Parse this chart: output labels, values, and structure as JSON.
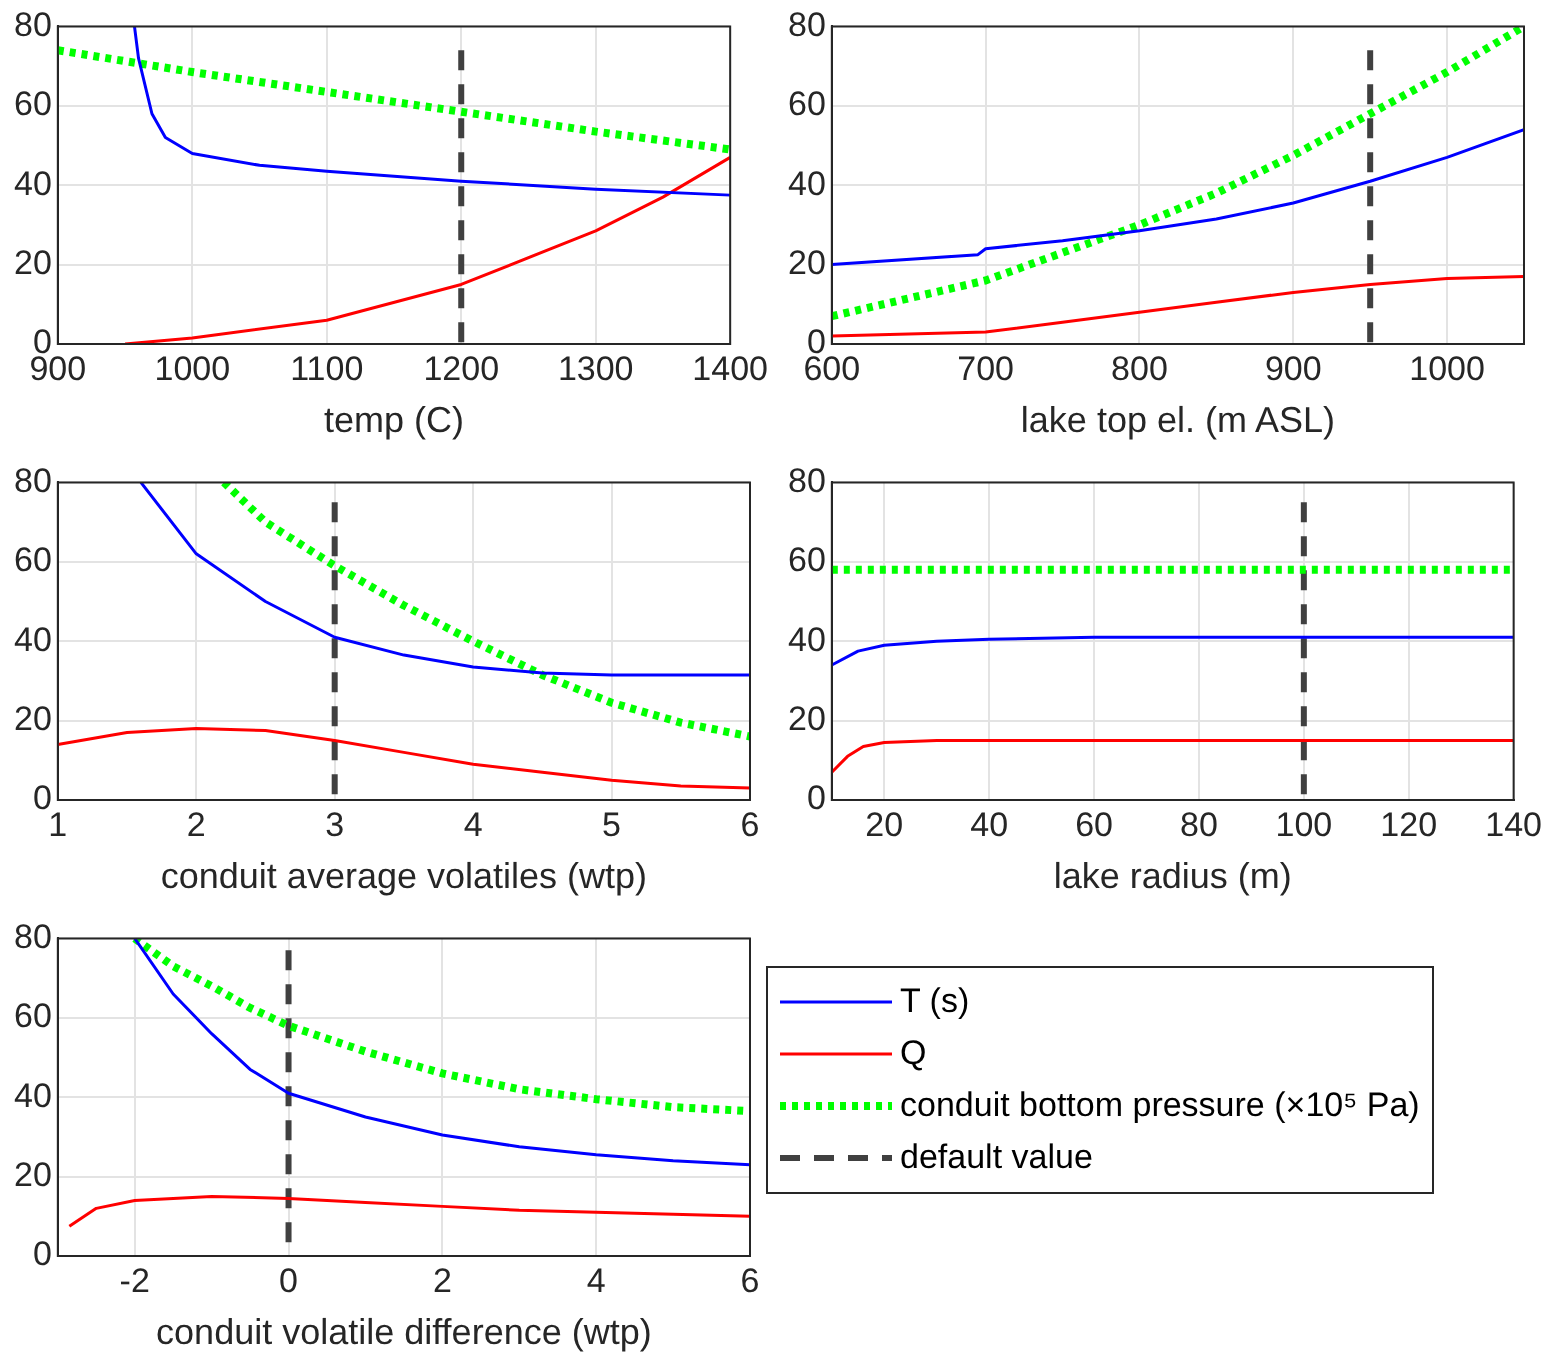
{
  "chart_data": [
    {
      "type": "line",
      "xlabel": "temp (C)",
      "xlim": [
        900,
        1400
      ],
      "xticks": [
        900,
        1000,
        1100,
        1200,
        1300,
        1400
      ],
      "ylim": [
        0,
        80
      ],
      "yticks": [
        0,
        20,
        40,
        60,
        80
      ],
      "grid": true,
      "series": [
        {
          "color": "#0000ff",
          "line_style": "solid",
          "x": [
            957,
            960,
            970,
            980,
            1000,
            1050,
            1100,
            1200,
            1300,
            1400
          ],
          "values": [
            80,
            72,
            58,
            52,
            48,
            45,
            43.5,
            41,
            39,
            37.5
          ]
        },
        {
          "color": "#ff0000",
          "line_style": "solid",
          "x": [
            950,
            1000,
            1100,
            1200,
            1300,
            1350,
            1400
          ],
          "values": [
            0,
            1.5,
            6,
            15,
            28.5,
            37,
            47
          ]
        },
        {
          "color": "#00ff00",
          "line_style": "dotted",
          "x": [
            900,
            1000,
            1100,
            1200,
            1300,
            1400
          ],
          "values": [
            74,
            68.5,
            63.5,
            58.5,
            53.5,
            49
          ]
        },
        {
          "color": "#404040",
          "line_style": "dashed",
          "x": [
            1200,
            1200
          ],
          "values": [
            74,
            0
          ]
        }
      ]
    },
    {
      "type": "line",
      "xlabel": "lake top el. (m ASL)",
      "xlim": [
        600,
        1050
      ],
      "xticks": [
        600,
        700,
        800,
        900,
        1000
      ],
      "ylim": [
        0,
        80
      ],
      "yticks": [
        0,
        20,
        40,
        60,
        80
      ],
      "grid": true,
      "series": [
        {
          "color": "#0000ff",
          "line_style": "solid",
          "x": [
            600,
            695,
            700,
            750,
            800,
            850,
            900,
            950,
            1000,
            1050
          ],
          "values": [
            20,
            22.5,
            24,
            26,
            28.5,
            31.5,
            35.5,
            41,
            47,
            54
          ]
        },
        {
          "color": "#ff0000",
          "line_style": "solid",
          "x": [
            600,
            700,
            750,
            800,
            850,
            900,
            950,
            1000,
            1050
          ],
          "values": [
            2,
            3,
            5.5,
            8,
            10.5,
            13,
            15,
            16.5,
            17
          ]
        },
        {
          "color": "#00ff00",
          "line_style": "dotted",
          "x": [
            600,
            700,
            800,
            850,
            900,
            950,
            1000,
            1050
          ],
          "values": [
            7,
            16,
            30,
            38,
            47.5,
            58,
            68.5,
            80
          ]
        },
        {
          "color": "#404040",
          "line_style": "dashed",
          "x": [
            950,
            950
          ],
          "values": [
            74,
            0
          ]
        }
      ]
    },
    {
      "type": "line",
      "xlabel": "conduit average volatiles (wtp)",
      "xlim": [
        1,
        6
      ],
      "xticks": [
        1,
        2,
        3,
        4,
        5,
        6
      ],
      "ylim": [
        0,
        80
      ],
      "yticks": [
        0,
        20,
        40,
        60,
        80
      ],
      "grid": true,
      "series": [
        {
          "color": "#0000ff",
          "line_style": "solid",
          "x": [
            1.6,
            2,
            2.5,
            3,
            3.5,
            4,
            4.5,
            5,
            6
          ],
          "values": [
            80,
            62,
            50,
            41,
            36.5,
            33.5,
            32,
            31.5,
            31.5
          ]
        },
        {
          "color": "#ff0000",
          "line_style": "solid",
          "x": [
            1,
            1.5,
            2,
            2.5,
            3,
            3.5,
            4,
            4.5,
            5,
            5.5,
            6
          ],
          "values": [
            14,
            17,
            18,
            17.5,
            15,
            12,
            9,
            7,
            5,
            3.5,
            3
          ]
        },
        {
          "color": "#00ff00",
          "line_style": "dotted",
          "x": [
            2.2,
            2.5,
            3,
            3.5,
            4,
            4.5,
            5,
            5.5,
            6
          ],
          "values": [
            80,
            70,
            59,
            49,
            40,
            31.5,
            24.5,
            19.5,
            16
          ]
        },
        {
          "color": "#404040",
          "line_style": "dashed",
          "x": [
            3,
            3
          ],
          "values": [
            75,
            0
          ]
        }
      ]
    },
    {
      "type": "line",
      "xlabel": "lake radius (m)",
      "xlim": [
        10,
        140
      ],
      "xticks": [
        20,
        40,
        60,
        80,
        100,
        120,
        140
      ],
      "ylim": [
        0,
        80
      ],
      "yticks": [
        0,
        20,
        40,
        60,
        80
      ],
      "grid": true,
      "series": [
        {
          "color": "#0000ff",
          "line_style": "solid",
          "x": [
            10,
            15,
            20,
            30,
            40,
            60,
            100,
            140
          ],
          "values": [
            34,
            37.5,
            39,
            40,
            40.5,
            41,
            41,
            41
          ]
        },
        {
          "color": "#ff0000",
          "line_style": "solid",
          "x": [
            10,
            13,
            16,
            20,
            30,
            140
          ],
          "values": [
            7,
            11,
            13.5,
            14.5,
            15,
            15
          ]
        },
        {
          "color": "#00ff00",
          "line_style": "dotted",
          "x": [
            10,
            140
          ],
          "values": [
            58,
            58
          ]
        },
        {
          "color": "#404040",
          "line_style": "dashed",
          "x": [
            100,
            100
          ],
          "values": [
            75,
            0
          ]
        }
      ]
    },
    {
      "type": "line",
      "xlabel": "conduit volatile difference (wtp)",
      "xlim": [
        -3,
        6
      ],
      "xticks": [
        -2,
        0,
        2,
        4,
        6
      ],
      "ylim": [
        0,
        80
      ],
      "yticks": [
        0,
        20,
        40,
        60,
        80
      ],
      "grid": true,
      "legend": "right",
      "series": [
        {
          "name": "T (s)",
          "color": "#0000ff",
          "line_style": "solid",
          "x": [
            -2,
            -1.5,
            -1,
            -0.5,
            0,
            1,
            2,
            3,
            4,
            5,
            6
          ],
          "values": [
            80,
            66,
            56,
            47,
            41,
            35,
            30.5,
            27.5,
            25.5,
            24,
            23
          ]
        },
        {
          "name": "Q",
          "color": "#ff0000",
          "line_style": "solid",
          "x": [
            -2.85,
            -2.5,
            -2,
            -1,
            0,
            1,
            2,
            3,
            4,
            5,
            6
          ],
          "values": [
            7.5,
            12,
            14,
            15,
            14.5,
            13.5,
            12.5,
            11.5,
            11,
            10.5,
            10
          ]
        },
        {
          "name": "conduit bottom pressure (×10⁵ Pa)",
          "color": "#00ff00",
          "line_style": "dotted",
          "x": [
            -2,
            -1.5,
            -1,
            -0.5,
            0,
            1,
            2,
            3,
            4,
            5,
            6
          ],
          "values": [
            80,
            73,
            68,
            62.5,
            58,
            51.5,
            46,
            42,
            39.5,
            37.5,
            36.5
          ]
        },
        {
          "name": "default value",
          "color": "#404040",
          "line_style": "dashed",
          "x": [
            0,
            0
          ],
          "values": [
            77,
            0
          ]
        }
      ]
    }
  ]
}
